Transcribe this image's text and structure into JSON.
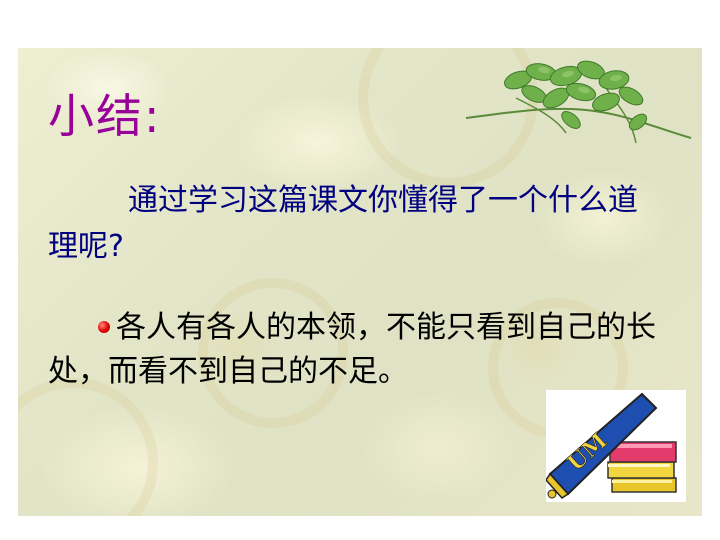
{
  "slide": {
    "title": "小结:",
    "question": "通过学习这篇课文你懂得了一个什么道理呢?",
    "answer": "各人有各人的本领，不能只看到自己的长处，而看不到自己的不足。"
  },
  "decorations": {
    "top_right": "leaf-vine-icon",
    "bottom_right": "books-pennant-icon",
    "pennant_text": "UM",
    "bullet_color": "#e00000",
    "title_color": "#990099",
    "question_color": "#000080"
  }
}
